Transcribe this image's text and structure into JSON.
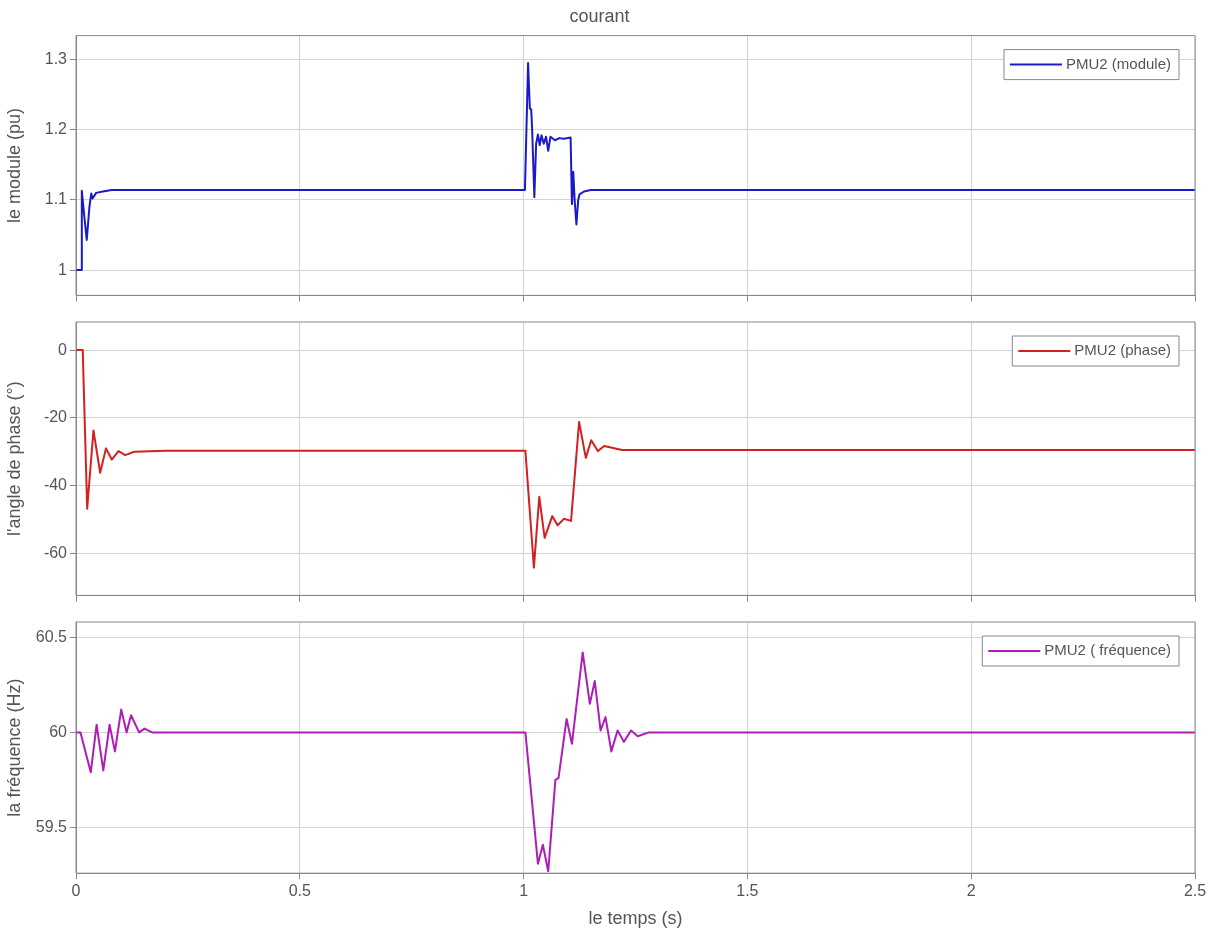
{
  "chart_data": [
    {
      "type": "line",
      "title": "courant",
      "ylabel": "le module (pu)",
      "xlim": [
        0,
        2.5
      ],
      "xticks": [
        0,
        0.5,
        1,
        1.5,
        2,
        2.5
      ],
      "ylim": [
        0.964,
        1.334
      ],
      "yticks": [
        1,
        1.1,
        1.2,
        1.3
      ],
      "grid": true,
      "legend": "top right",
      "tick_labels": "y",
      "series": [
        {
          "name": "PMU2 (module)",
          "color": "#1a1ac8",
          "x": [
            0,
            0.012,
            0.013,
            0.018,
            0.024,
            0.03,
            0.034,
            0.037,
            0.045,
            0.06,
            0.08,
            1.0,
            1.003,
            1.01,
            1.014,
            1.017,
            1.019,
            1.024,
            1.028,
            1.032,
            1.036,
            1.04,
            1.045,
            1.05,
            1.055,
            1.06,
            1.07,
            1.08,
            1.09,
            1.105,
            1.108,
            1.111,
            1.114,
            1.118,
            1.122,
            1.125,
            1.135,
            1.15,
            1.5,
            2.0,
            2.5
          ],
          "values": [
            1,
            1,
            1.113,
            1.08,
            1.043,
            1.09,
            1.109,
            1.102,
            1.11,
            1.112,
            1.114,
            1.114,
            1.114,
            1.295,
            1.23,
            1.229,
            1.202,
            1.104,
            1.18,
            1.193,
            1.178,
            1.192,
            1.18,
            1.19,
            1.17,
            1.19,
            1.185,
            1.188,
            1.187,
            1.189,
            1.094,
            1.14,
            1.1,
            1.065,
            1.1,
            1.108,
            1.112,
            1.114,
            1.114,
            1.114,
            1.114
          ]
        }
      ]
    },
    {
      "type": "line",
      "ylabel": "l'angle de phase (°)",
      "xlim": [
        0,
        2.5
      ],
      "xticks": [
        0,
        0.5,
        1,
        1.5,
        2,
        2.5
      ],
      "ylim": [
        -72.4,
        8.3
      ],
      "yticks": [
        -60,
        -40,
        -20,
        0
      ],
      "grid": true,
      "legend": "top right",
      "tick_labels": "y",
      "series": [
        {
          "name": "PMU2 (phase)",
          "color": "#d42020",
          "x": [
            0,
            0.015,
            0.025,
            0.039,
            0.054,
            0.067,
            0.08,
            0.095,
            0.11,
            0.13,
            0.2,
            1.0,
            1.004,
            1.023,
            1.035,
            1.047,
            1.064,
            1.076,
            1.09,
            1.106,
            1.124,
            1.139,
            1.151,
            1.166,
            1.18,
            1.22,
            1.5,
            2.0,
            2.5
          ],
          "values": [
            0,
            0,
            -46.8,
            -23.7,
            -36.2,
            -29,
            -32.3,
            -29.8,
            -31,
            -30,
            -29.7,
            -29.7,
            -29.7,
            -64.2,
            -43.3,
            -55.4,
            -49,
            -51.7,
            -49.8,
            -50.4,
            -21.2,
            -31.8,
            -26.6,
            -29.8,
            -28.3,
            -29.5,
            -29.5,
            -29.5,
            -29.5
          ]
        }
      ]
    },
    {
      "type": "line",
      "ylabel": "la fréquence (Hz)",
      "xlabel": "le temps (s)",
      "xlim": [
        0,
        2.5
      ],
      "xticks": [
        0,
        0.5,
        1,
        1.5,
        2,
        2.5
      ],
      "ylim": [
        59.26,
        60.58
      ],
      "yticks": [
        59.5,
        60,
        60.5
      ],
      "grid": true,
      "legend": "top right",
      "series": [
        {
          "name": "PMU2 ( fréquence)",
          "color": "#b01cb8",
          "x": [
            0,
            0.01,
            0.033,
            0.046,
            0.061,
            0.075,
            0.087,
            0.101,
            0.113,
            0.123,
            0.141,
            0.153,
            0.17,
            0.5,
            1.0,
            1.004,
            1.032,
            1.043,
            1.055,
            1.071,
            1.078,
            1.096,
            1.108,
            1.132,
            1.148,
            1.159,
            1.172,
            1.183,
            1.196,
            1.21,
            1.224,
            1.24,
            1.255,
            1.28,
            1.5,
            2.0,
            2.5
          ],
          "values": [
            60,
            60,
            59.79,
            60.04,
            59.8,
            60.04,
            59.9,
            60.12,
            60,
            60.09,
            60,
            60.02,
            60,
            60,
            60,
            60,
            59.31,
            59.41,
            59.27,
            59.75,
            59.76,
            60.07,
            59.94,
            60.42,
            60.15,
            60.27,
            60.01,
            60.08,
            59.9,
            60.01,
            59.95,
            60.01,
            59.98,
            60,
            60,
            60,
            60
          ]
        }
      ]
    }
  ]
}
